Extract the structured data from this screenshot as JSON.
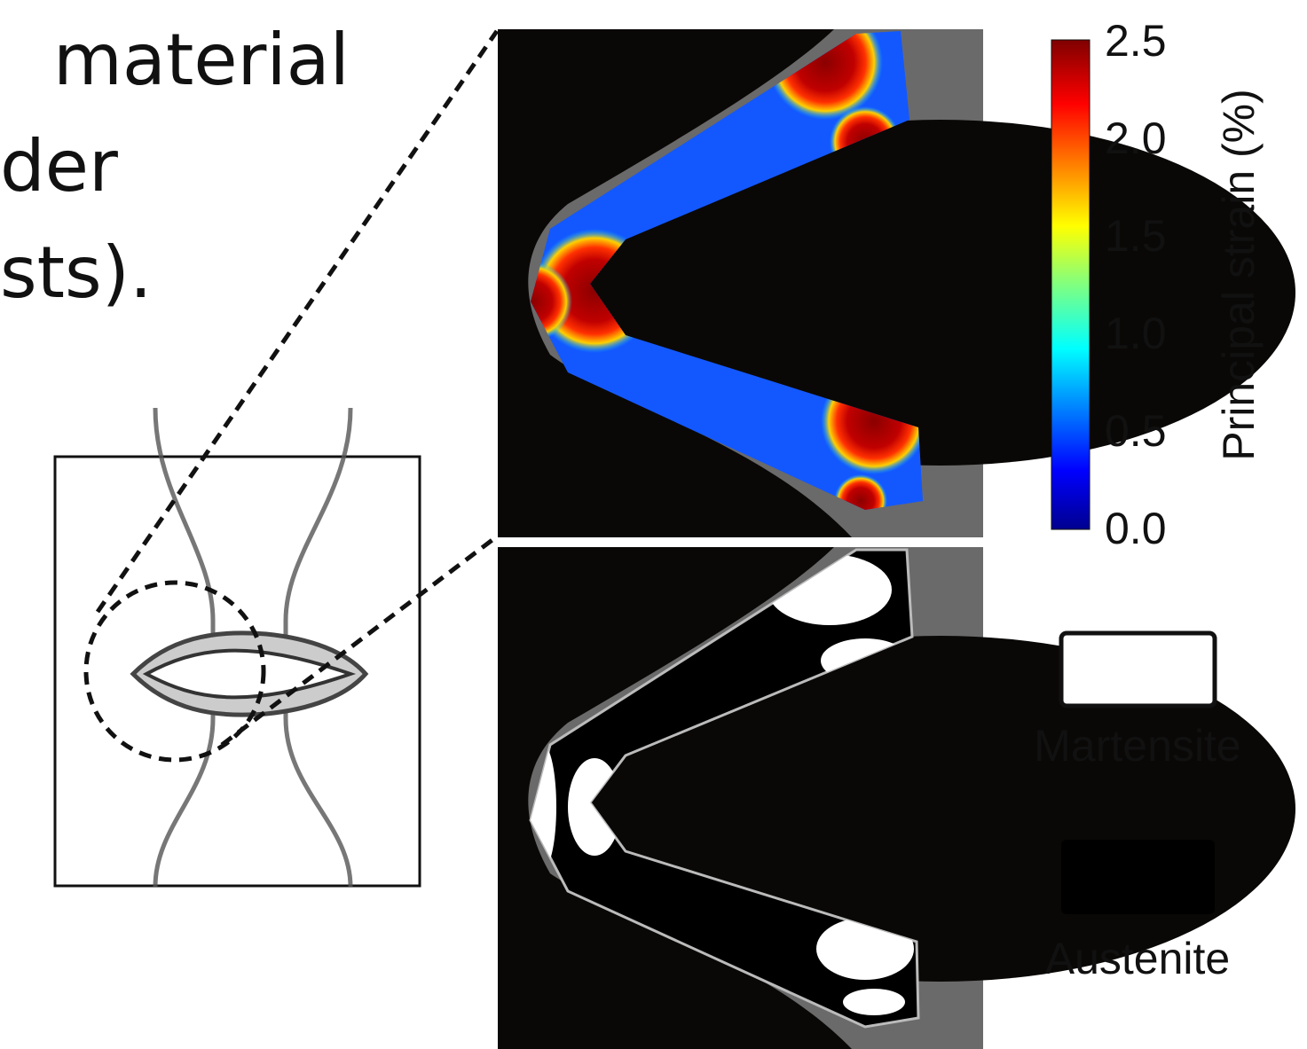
{
  "slide_text": [
    "material",
    "der",
    "sts)."
  ],
  "colorbar": {
    "label": "Principal strain (%)",
    "ticks": [
      "2.5",
      "2.0",
      "1.5",
      "1.0",
      "0.5",
      "0.0"
    ]
  },
  "legend": [
    "Martensite",
    "Austenite"
  ]
}
